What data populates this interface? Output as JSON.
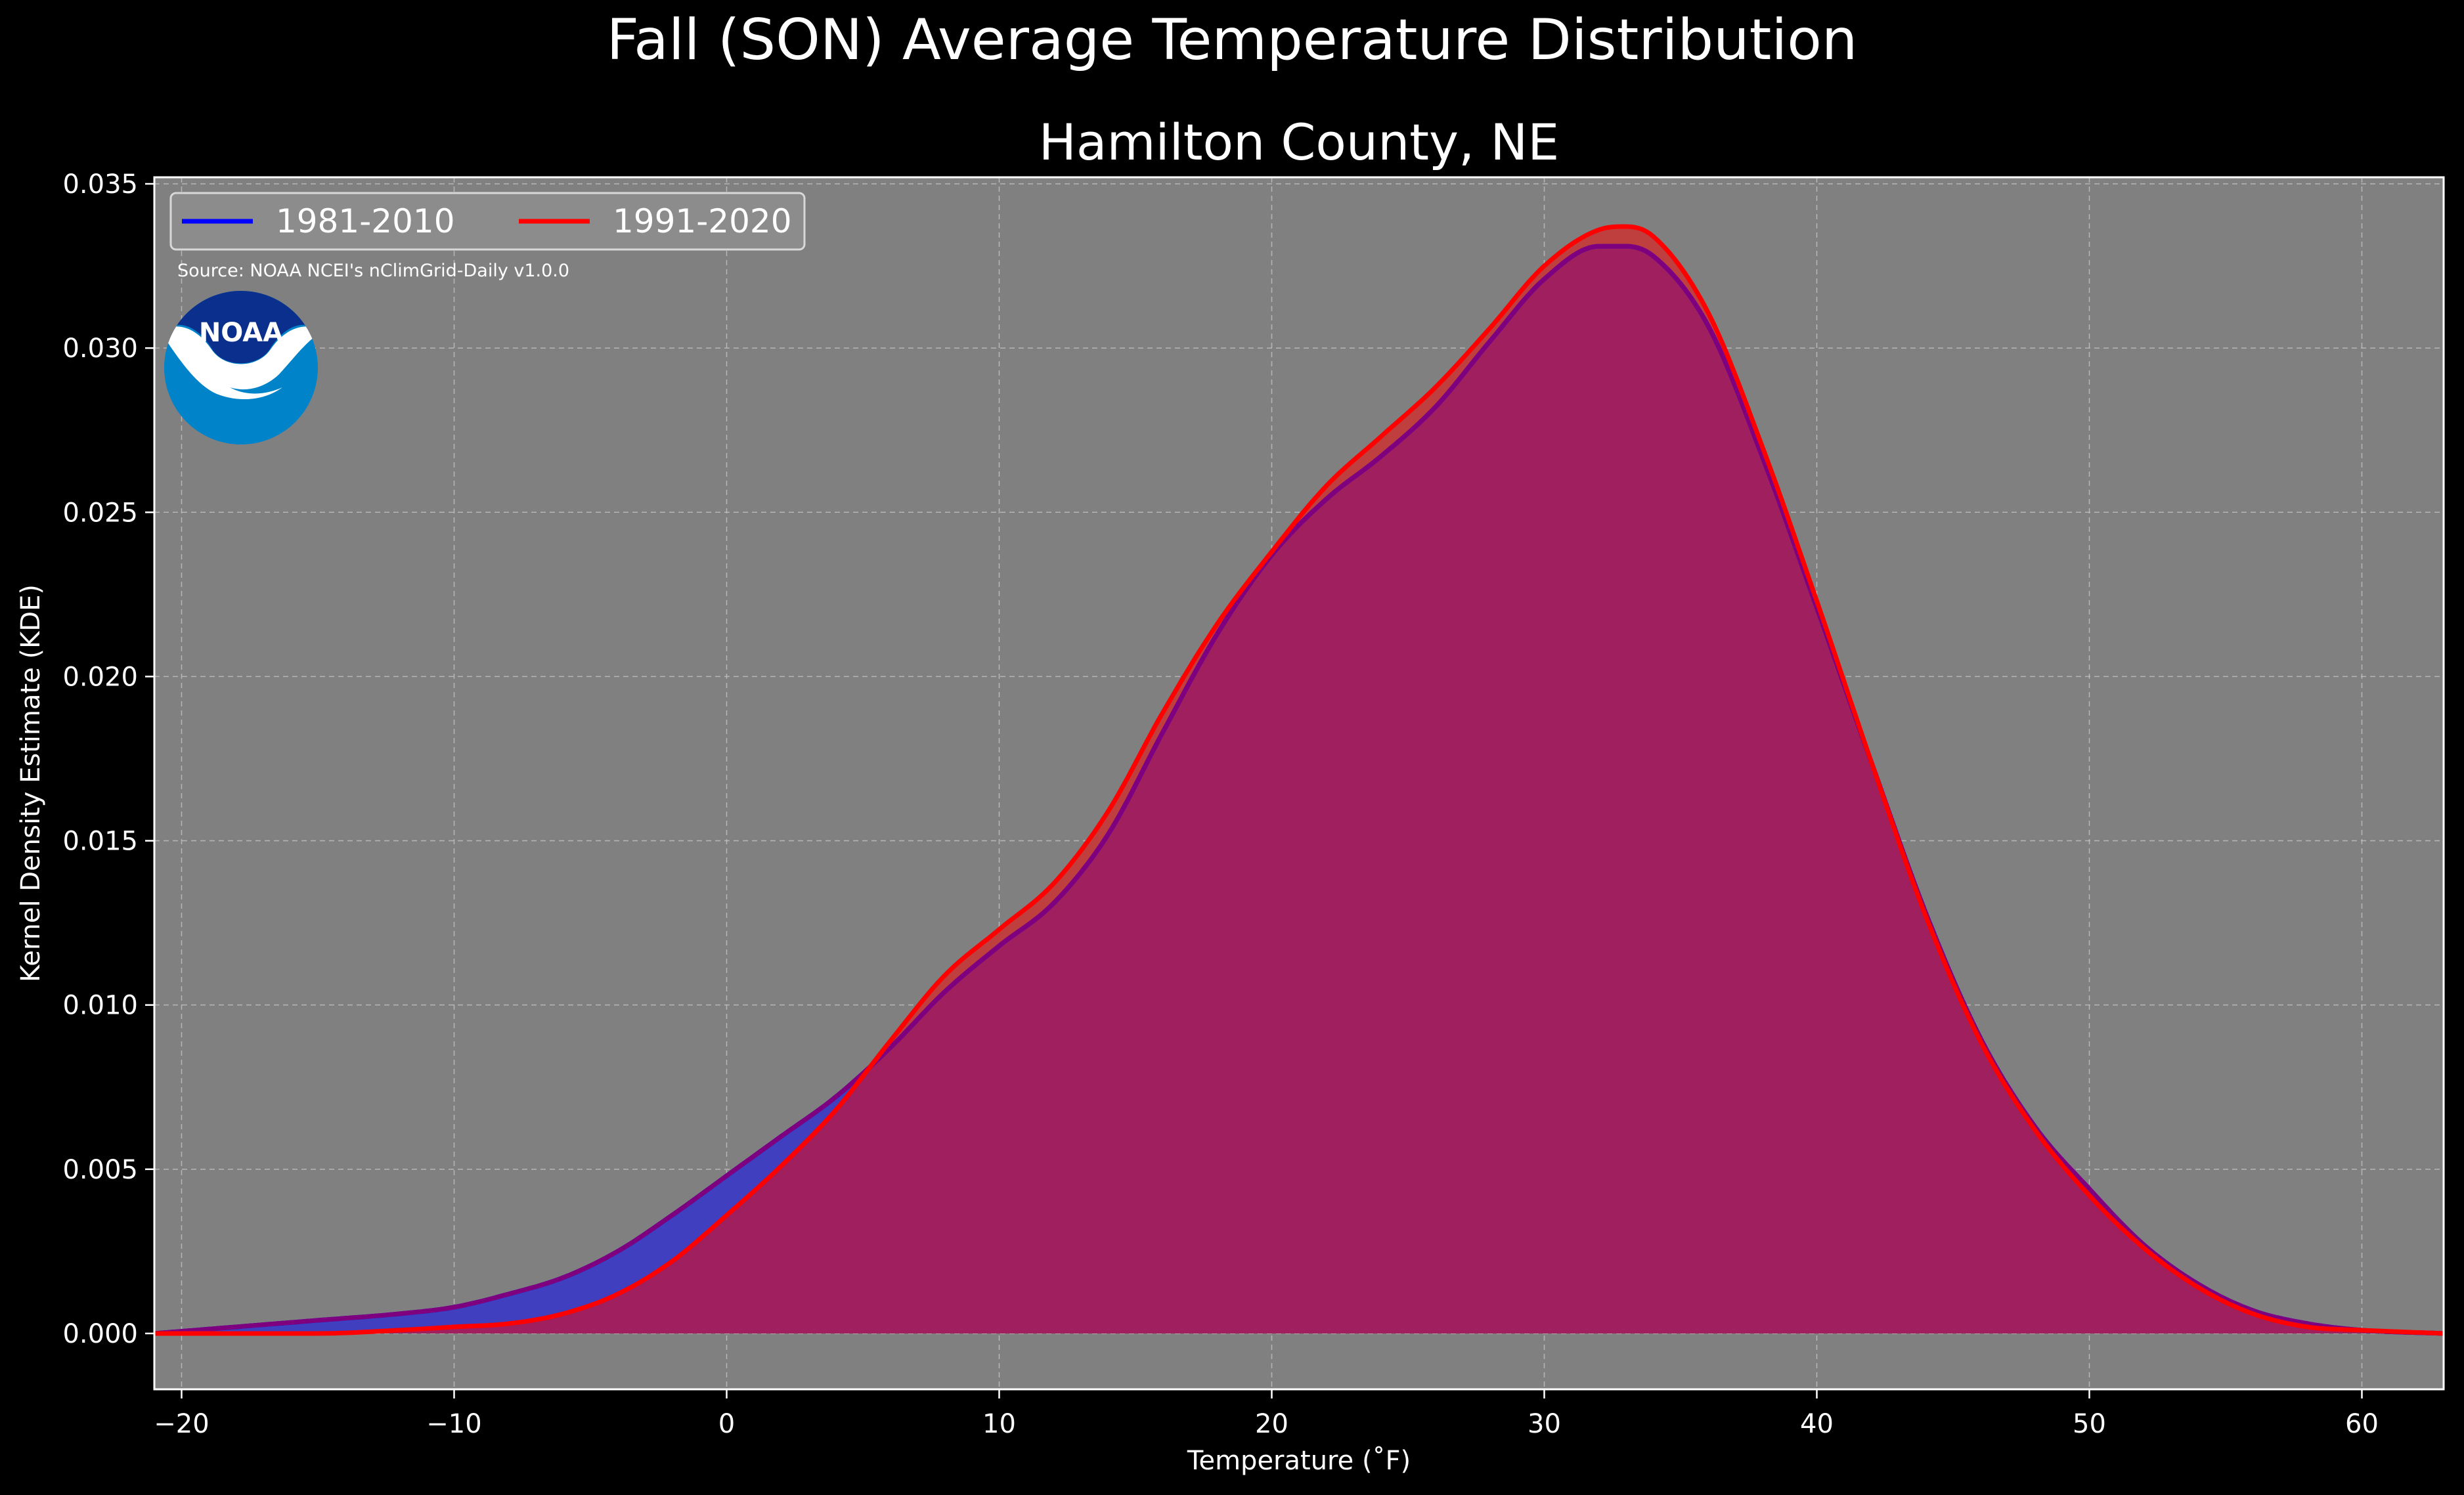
{
  "chart_data": {
    "type": "area",
    "title": "Fall (SON) Average Temperature Distribution",
    "subtitle": "Hamilton County, NE",
    "xlabel": "Temperature (˚F)",
    "ylabel": "Kernel Density Estimate (KDE)",
    "xlim": [
      -21,
      63
    ],
    "ylim": [
      -0.0017,
      0.0352
    ],
    "xticks": [
      -20,
      -10,
      0,
      10,
      20,
      30,
      40,
      50,
      60
    ],
    "xtick_labels": [
      "−20",
      "−10",
      "0",
      "10",
      "20",
      "30",
      "40",
      "50",
      "60"
    ],
    "yticks": [
      0.0,
      0.005,
      0.01,
      0.015,
      0.02,
      0.025,
      0.03,
      0.035
    ],
    "ytick_labels": [
      "0.000",
      "0.005",
      "0.010",
      "0.015",
      "0.020",
      "0.025",
      "0.030",
      "0.035"
    ],
    "grid": true,
    "legend_position": "top-left",
    "annotations": [
      "Source: NOAA NCEI's nClimGrid-Daily v1.0.0"
    ],
    "logo_text": "NOAA",
    "colors": {
      "figure_background": "#000000",
      "plot_background": "#808080",
      "series_1": "#0000ff",
      "series_2": "#ff0000",
      "series_1_fill": "#3f3fbf",
      "series_2_fill": "#bf3f3f",
      "overlap_fill": "#9f1f5f",
      "noaa_dark_blue": "#0a2f8c",
      "noaa_light_blue": "#0083c9"
    },
    "x": [
      -21,
      -18,
      -15,
      -12,
      -10,
      -8,
      -6,
      -4,
      -2,
      0,
      2,
      4,
      6,
      8,
      10,
      12,
      14,
      16,
      18,
      20,
      22,
      24,
      26,
      28,
      30,
      32,
      33,
      34,
      36,
      38,
      40,
      42,
      44,
      46,
      48,
      50,
      52,
      54,
      56,
      58,
      60,
      63
    ],
    "series": [
      {
        "name": "1981-2010",
        "values": [
          0.0,
          0.0002,
          0.0004,
          0.0006,
          0.0008,
          0.0012,
          0.0017,
          0.0025,
          0.0036,
          0.0048,
          0.006,
          0.0072,
          0.0087,
          0.0104,
          0.0118,
          0.0131,
          0.0152,
          0.0183,
          0.0213,
          0.0237,
          0.0254,
          0.0267,
          0.0282,
          0.0302,
          0.0321,
          0.0331,
          0.0331,
          0.0328,
          0.0307,
          0.0267,
          0.0221,
          0.0174,
          0.0128,
          0.009,
          0.0063,
          0.0044,
          0.0027,
          0.0015,
          0.0007,
          0.0003,
          0.0001,
          0.0
        ]
      },
      {
        "name": "1991-2020",
        "values": [
          0.0,
          0.0,
          0.0,
          0.0001,
          0.0002,
          0.0003,
          0.0006,
          0.0012,
          0.0022,
          0.0036,
          0.0051,
          0.0068,
          0.0089,
          0.0109,
          0.0123,
          0.0137,
          0.0159,
          0.0189,
          0.0216,
          0.0238,
          0.0258,
          0.0273,
          0.0288,
          0.0306,
          0.0325,
          0.0336,
          0.0337,
          0.0334,
          0.0311,
          0.027,
          0.0223,
          0.0174,
          0.0127,
          0.0089,
          0.0062,
          0.0042,
          0.0026,
          0.0014,
          0.0006,
          0.0002,
          0.0001,
          0.0
        ]
      }
    ]
  }
}
